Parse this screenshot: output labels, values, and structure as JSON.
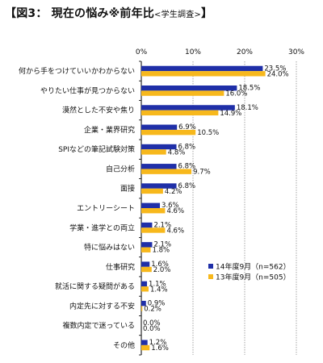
{
  "title_main": "【図3： 現在の悩み※前年比",
  "title_sub": "<学生調査>",
  "title_end": "】",
  "chart_data": {
    "type": "bar",
    "orientation": "horizontal",
    "categories": [
      "何から手をつけていいかわからない",
      "やりたい仕事が見つからない",
      "漠然とした不安や焦り",
      "企業・業界研究",
      "SPIなどの筆記試験対策",
      "自己分析",
      "面接",
      "エントリーシート",
      "学業・進学との両立",
      "特に悩みはない",
      "仕事研究",
      "就活に関する疑問がある",
      "内定先に対する不安",
      "複数内定で迷っている",
      "その他"
    ],
    "series": [
      {
        "name": "14年度9月（n=562）",
        "color": "#1f2fa8",
        "values": [
          23.5,
          18.5,
          18.1,
          6.9,
          6.8,
          6.8,
          6.8,
          3.6,
          2.1,
          2.1,
          1.6,
          1.1,
          0.9,
          0.0,
          1.2
        ],
        "labels": [
          "23.5%",
          "18.5%",
          "18.1%",
          "6.9%",
          "6.8%",
          "6.8%",
          "6.8%",
          "3.6%",
          "2.1%",
          "2.1%",
          "1.6%",
          "1.1%",
          "0.9%",
          "0.0%",
          "1.2%"
        ]
      },
      {
        "name": "13年度9月（n=505）",
        "color": "#f7b81c",
        "values": [
          24.0,
          16.0,
          14.9,
          10.5,
          4.8,
          9.7,
          4.2,
          4.6,
          4.6,
          1.8,
          2.0,
          1.4,
          0.2,
          0.0,
          1.6
        ],
        "labels": [
          "24.0%",
          "16.0%",
          "14.9%",
          "10.5%",
          "4.8%",
          "9.7%",
          "4.2%",
          "4.6%",
          "4.6%",
          "1.8%",
          "2.0%",
          "1.4%",
          "0.2%",
          "0.0%",
          "1.6%"
        ]
      }
    ],
    "xlim": [
      0,
      30
    ],
    "xticks": [
      "0%",
      "10%",
      "20%",
      "30%"
    ],
    "grid": true,
    "legend_position": "bottom-right"
  },
  "colors": {
    "grid": "#8f8f8f",
    "axis": "#000000"
  }
}
